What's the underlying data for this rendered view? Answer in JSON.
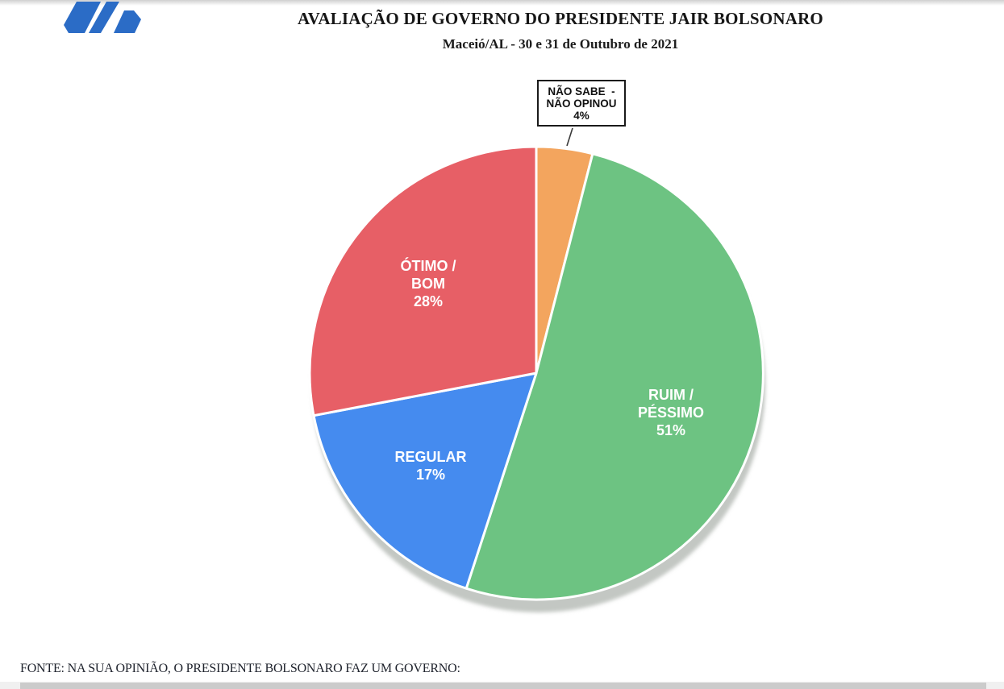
{
  "page": {
    "title": "AVALIAÇÃO DE GOVERNO DO PRESIDENTE JAIR BOLSONARO",
    "subtitle": "Maceió/AL - 30 e 31 de Outubro de 2021",
    "footer": "FONTE: NA SUA OPINIÃO, O PRESIDENTE BOLSONARO FAZ UM GOVERNO:"
  },
  "logo": {
    "name": "survey-institute-logo",
    "color": "#2B6CC6"
  },
  "callout": {
    "lines": [
      "NÃO SABE  -",
      "NÃO OPINOU",
      "4%"
    ]
  },
  "chart_data": {
    "type": "pie",
    "title": "AVALIAÇÃO DE GOVERNO DO PRESIDENTE JAIR BOLSONARO",
    "subtitle": "Maceió/AL - 30 e 31 de Outubro de 2021",
    "unit": "%",
    "direction": "clockwise",
    "start_angle_deg": 0,
    "legend": "none",
    "shadow_color": "#c3c7c3",
    "slices": [
      {
        "id": "nao-sabe",
        "label": "NÃO SABE - NÃO OPINOU",
        "value": 4,
        "color": "#F3A55E",
        "label_style": "callout"
      },
      {
        "id": "ruim-pessimo",
        "label": "RUIM / PÉSSIMO",
        "value": 51,
        "color": "#6DC382",
        "label_lines": [
          "RUIM /",
          "PÉSSIMO",
          "51%"
        ]
      },
      {
        "id": "regular",
        "label": "REGULAR",
        "value": 17,
        "color": "#458BEF",
        "label_lines": [
          "REGULAR",
          "17%"
        ]
      },
      {
        "id": "otimo-bom",
        "label": "ÓTIMO / BOM",
        "value": 28,
        "color": "#E75F66",
        "label_lines": [
          "ÓTIMO /",
          "BOM",
          "28%"
        ]
      }
    ]
  }
}
